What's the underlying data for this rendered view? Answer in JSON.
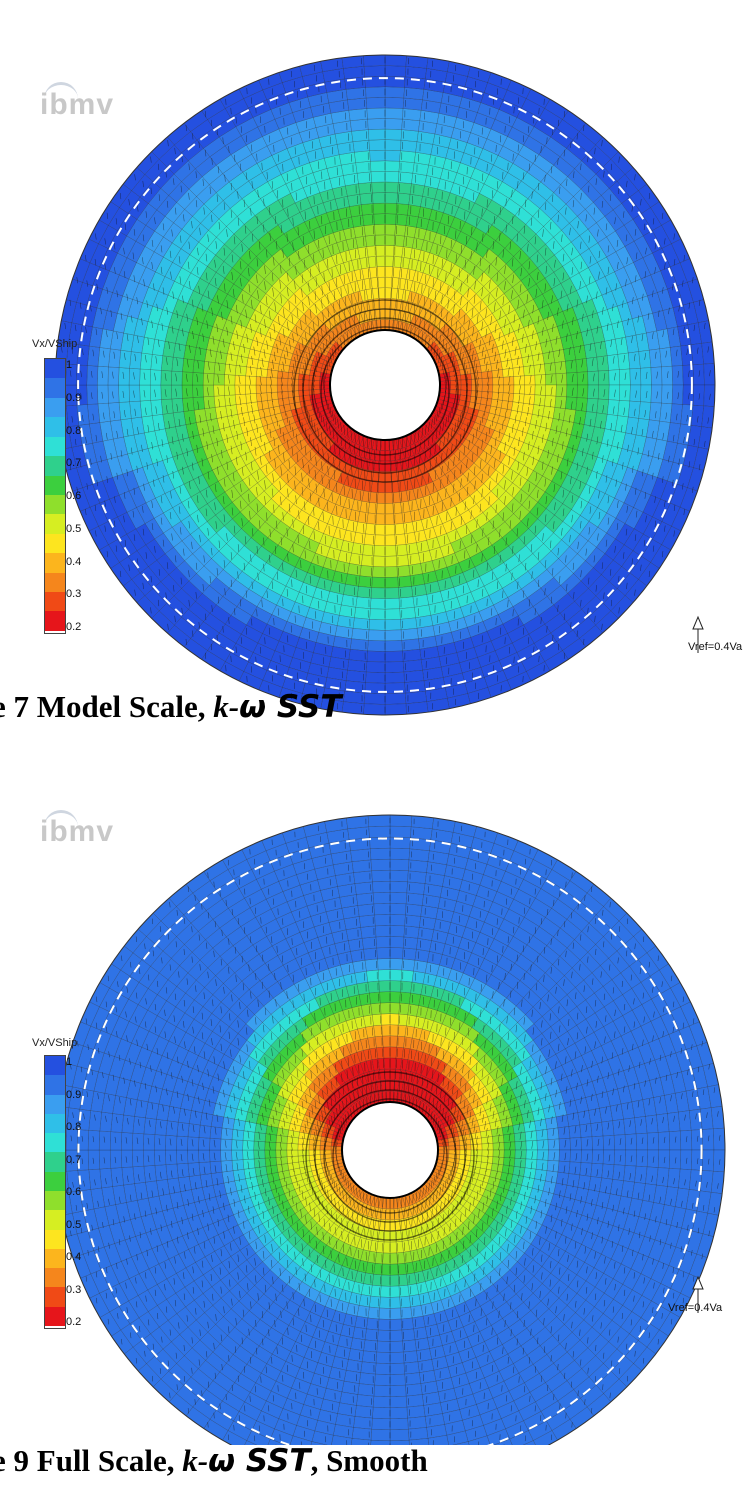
{
  "colors": {
    "scale": [
      "#e6151b",
      "#f04a16",
      "#f5861c",
      "#fcb51d",
      "#fde51f",
      "#d6ee22",
      "#8fdf2c",
      "#3ccf3e",
      "#2fd08c",
      "#2fe0d6",
      "#2fbfe8",
      "#3a9ef0",
      "#2f73e6",
      "#2450e0"
    ]
  },
  "chart_data": [
    {
      "type": "heatmap",
      "title": "",
      "colorbar_label": "Vx/VShip",
      "colorbar_ticks": [
        "1",
        "0.9",
        "0.8",
        "0.7",
        "0.6",
        "0.5",
        "0.4",
        "0.3",
        "0.2"
      ],
      "color_range": [
        0.2,
        1.0
      ],
      "reference_vector_label": "Vref=0.4Va",
      "watermark": "ibmv",
      "caption": {
        "prefix": "e 7 Model Scale, ",
        "model": "k-",
        "omega": "ω SST",
        "suffix": ""
      }
    },
    {
      "type": "heatmap",
      "title": "",
      "colorbar_label": "Vx/VShip",
      "colorbar_ticks": [
        "1",
        "0.9",
        "0.8",
        "0.7",
        "0.6",
        "0.5",
        "0.4",
        "0.3",
        "0.2"
      ],
      "color_range": [
        0.2,
        1.0
      ],
      "reference_vector_label": "Vref=0.4Va",
      "watermark": "ibmv",
      "caption": {
        "prefix": "e 9 Full Scale, ",
        "model": "k-",
        "omega": "ω SST",
        "suffix": ", Smooth"
      }
    }
  ]
}
